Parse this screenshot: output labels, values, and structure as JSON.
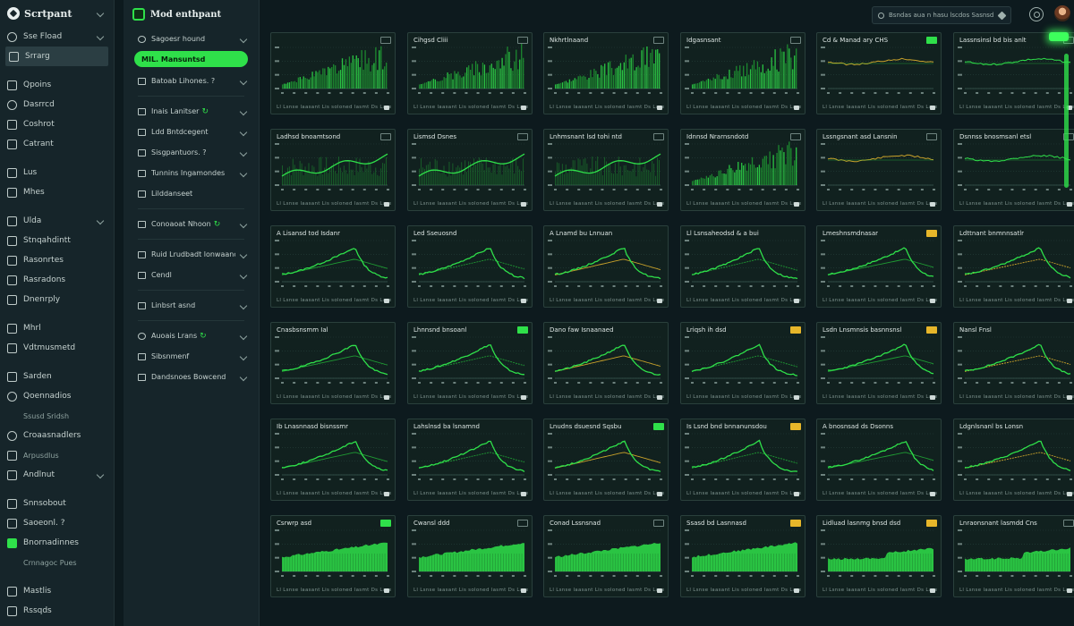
{
  "app": {
    "title": "Scrtpant"
  },
  "leftnav": {
    "groups": [
      [
        {
          "label": "Sse Fload",
          "icon": "gear-icon",
          "chevron": true,
          "round": true
        },
        {
          "label": "Srrarg",
          "icon": "document-icon",
          "active": true
        }
      ],
      [
        {
          "label": "Qpoins",
          "icon": "link-icon"
        },
        {
          "label": "Dasrrcd",
          "icon": "lock-icon",
          "round": true
        },
        {
          "label": "Coshrot",
          "icon": "briefcase-icon"
        },
        {
          "label": "Catrant",
          "icon": "grid-icon"
        }
      ],
      [
        {
          "label": "Lus",
          "icon": "monitor-icon"
        },
        {
          "label": "Mhes",
          "icon": "table-icon"
        }
      ],
      [
        {
          "label": "Ulda",
          "icon": "database-icon",
          "chevron": true
        },
        {
          "label": "Stnqahdintt",
          "icon": "calendar-icon"
        },
        {
          "label": "Rasonrtes",
          "icon": "list-icon"
        },
        {
          "label": "Rasradons",
          "icon": "layers-icon"
        },
        {
          "label": "Dnenrply",
          "icon": "server-icon"
        }
      ],
      [
        {
          "label": "Mhrl",
          "icon": "chart-icon"
        },
        {
          "label": "Vdtmusmetd",
          "icon": "flag-icon"
        }
      ],
      [
        {
          "label": "Sarden",
          "icon": "stack-icon"
        },
        {
          "label": "Qoennadios",
          "icon": "cloud-icon",
          "round": true
        },
        {
          "label": "Ssusd Sridsh",
          "icon": "none",
          "sub": true
        },
        {
          "label": "Croaasnadlers",
          "icon": "cycle-icon",
          "round": true
        },
        {
          "label": "Arpusdlus",
          "icon": "user-icon",
          "sub": true
        },
        {
          "label": "Andlnut",
          "icon": "wave-icon",
          "chevron": true
        }
      ],
      [
        {
          "label": "Snnsobout",
          "icon": "box-icon"
        },
        {
          "label": "Saoeonl. ?",
          "icon": "file-icon"
        },
        {
          "label": "Bnornadinnes",
          "icon": "green-square-icon",
          "green": true
        },
        {
          "label": "Crnnagoc Pues",
          "icon": "none",
          "sub": true
        }
      ],
      [
        {
          "label": "Mastlis",
          "icon": "book-icon"
        },
        {
          "label": "Rssqds",
          "icon": "help-icon"
        }
      ]
    ]
  },
  "midpanel": {
    "title": "Mod enthpant",
    "items": [
      {
        "label": "Sagoesr hound",
        "icon": "target-icon",
        "round": true,
        "chevron": true
      },
      {
        "label": "MIL. Mansuntsd",
        "selected": true
      },
      {
        "label": "Batoab Lihones. ?",
        "icon": "folder-icon",
        "chevron": true,
        "sep_after": true
      },
      {
        "label": "Inais Lanitser",
        "icon": "chip-icon",
        "mark": "↻",
        "chevron": true
      },
      {
        "label": "Ldd Bntdcegent",
        "icon": "grid-icon",
        "chevron": true
      },
      {
        "label": "Sisgpantuors. ?",
        "icon": "model-icon",
        "chevron": true
      },
      {
        "label": "Tunnins Ingamondes",
        "icon": "plug-icon",
        "chevron": true
      },
      {
        "label": "Lilddanseet",
        "icon": "box-icon",
        "sep_after": true
      },
      {
        "label": "Conoaoat Nhoon",
        "icon": "code-icon",
        "mark": "↻",
        "chevron": true,
        "sep_after": true
      },
      {
        "label": "Ruid Lrudbadt lonwaanond",
        "icon": "archive-icon",
        "chevron": true
      },
      {
        "label": "Cendl",
        "icon": "key-icon",
        "chevron": true,
        "sep_after": true
      },
      {
        "label": "Linbsrt asnd",
        "icon": "chart-icon",
        "chevron": true,
        "sep_after": true
      },
      {
        "label": "Auoais Lrans",
        "icon": "swap-icon",
        "round": true,
        "mark": "↻",
        "chevron": true
      },
      {
        "label": "Sibsnmenf",
        "icon": "shield-icon",
        "chevron": true
      },
      {
        "label": "Dandsnoes Bowcend",
        "icon": "clock-icon",
        "chevron": true
      }
    ]
  },
  "topbar": {
    "search_placeholder": "Bsndas aua n hasu lscdos Sasnsd"
  },
  "footer_text": "Ll Lsnse laasant   Lis soloned lasmt   Ds Lase",
  "cards": [
    {
      "title": "",
      "badge": "plain",
      "type": "bars",
      "seed": 1
    },
    {
      "title": "Cihgsd Cliii",
      "badge": "plain",
      "type": "bars",
      "seed": 2
    },
    {
      "title": "Nkhrtlnaand",
      "badge": "plain",
      "type": "bars",
      "seed": 3
    },
    {
      "title": "Idgasnsant",
      "badge": "plain",
      "type": "bars",
      "seed": 4
    },
    {
      "title": "Cd & Manad ary CHS",
      "badge": "green",
      "type": "flat",
      "seed": 5
    },
    {
      "title": "Lassnsinsl bd bis anlt",
      "badge": "plain",
      "type": "flat",
      "seed": 6
    },
    {
      "title": "Ladhsd bnoamtsond",
      "badge": "plain",
      "type": "wave",
      "seed": 7
    },
    {
      "title": "Lismsd Dsnes",
      "badge": "plain",
      "type": "wave",
      "seed": 8
    },
    {
      "title": "Lnhmsnant lsd tohi ntd",
      "badge": "plain",
      "type": "wave",
      "seed": 9
    },
    {
      "title": "Idnnsd Nrarnsndotd",
      "badge": "plain",
      "type": "bars",
      "seed": 10
    },
    {
      "title": "Lssngsnant asd Lansnin",
      "badge": "plain",
      "type": "flat",
      "seed": 11
    },
    {
      "title": "Dsnnss bnosmsanl etsl",
      "badge": "plain",
      "type": "flat",
      "seed": 12
    },
    {
      "title": "A Lisansd tod Isdanr",
      "badge": "none",
      "type": "peak",
      "seed": 13
    },
    {
      "title": "Led Sseuosnd",
      "badge": "none",
      "type": "peak",
      "seed": 14
    },
    {
      "title": "A Lnamd bu Lnnuan",
      "badge": "none",
      "type": "peak",
      "seed": 15
    },
    {
      "title": "Ll Lsnsaheodsd & a bui",
      "badge": "none",
      "type": "peak",
      "seed": 16
    },
    {
      "title": "Lmeshnsmdnasar",
      "badge": "yellow",
      "type": "peak",
      "seed": 17
    },
    {
      "title": "Ldttnant bnmnnsatlr",
      "badge": "none",
      "type": "peak",
      "seed": 18
    },
    {
      "title": "Cnasbsnsmm      Ial",
      "badge": "none",
      "type": "peak",
      "seed": 19
    },
    {
      "title": "Lhnnsnd bnsoanl",
      "badge": "green",
      "type": "peak",
      "seed": 20
    },
    {
      "title": "Dano faw Isnaanaed",
      "badge": "none",
      "type": "peak",
      "seed": 21
    },
    {
      "title": "Lriqsh ih dsd",
      "badge": "yellow",
      "type": "peak",
      "seed": 22
    },
    {
      "title": "Lsdn Lnsmnsis basnnsnsl",
      "badge": "yellow",
      "type": "peak",
      "seed": 23
    },
    {
      "title": "Nansl Fnsl",
      "badge": "none",
      "type": "peak",
      "seed": 24
    },
    {
      "title": "Ib Lnasnnasd bisnssmr",
      "badge": "none",
      "type": "peak",
      "seed": 25
    },
    {
      "title": "Lahslnsd ba lsnamnd",
      "badge": "none",
      "type": "peak",
      "seed": 26
    },
    {
      "title": "Lnudns dsuesnd Sqsbu",
      "badge": "green",
      "type": "peak",
      "seed": 27
    },
    {
      "title": "Is Lsnd bnd bnnanunsdou",
      "badge": "yellow",
      "type": "peak",
      "seed": 28
    },
    {
      "title": "A bnosnsad ds Dsonns",
      "badge": "none",
      "type": "peak",
      "seed": 29
    },
    {
      "title": "Ldgnlsnanl bs Lonsn",
      "badge": "none",
      "type": "peak",
      "seed": 30
    },
    {
      "title": "Csrwrp asd",
      "badge": "green",
      "type": "area",
      "seed": 31
    },
    {
      "title": "Cwansl ddd",
      "badge": "plain",
      "type": "area",
      "seed": 32
    },
    {
      "title": "Conad Lssnsnad",
      "badge": "plain",
      "type": "area",
      "seed": 33
    },
    {
      "title": "Ssasd bd Lasnnasd",
      "badge": "yellow",
      "type": "area",
      "seed": 34
    },
    {
      "title": "Lidluad lasnmg bnsd dsd",
      "badge": "yellow",
      "type": "area2",
      "seed": 35
    },
    {
      "title": "Lnraonsnant lasmdd Cns",
      "badge": "plain",
      "type": "area2",
      "seed": 36
    }
  ],
  "colors": {
    "accent": "#2fe04a",
    "accent_dim": "#1f9a33",
    "warn": "#e7b62a",
    "amber_line": "#c9a22a"
  }
}
